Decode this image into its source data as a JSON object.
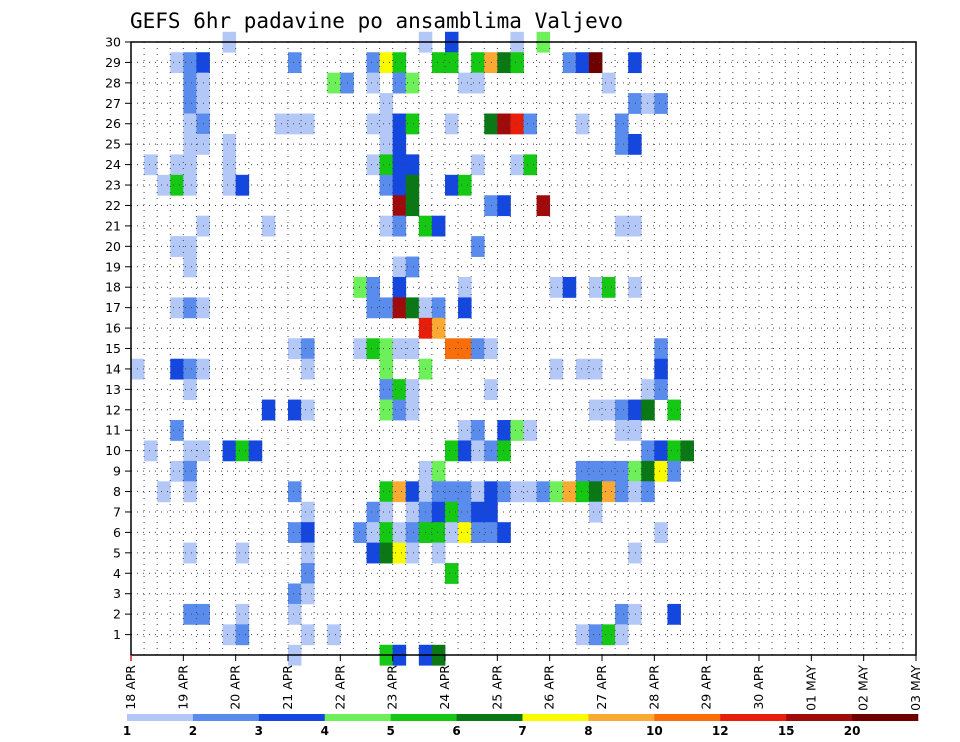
{
  "chart_data": {
    "type": "heatmap",
    "title": "GEFS 6hr padavine po ansamblima Valjevo",
    "xlabel": "",
    "ylabel": "",
    "x_tick_labels": [
      "18 APR",
      "19 APR",
      "20 APR",
      "21 APR",
      "22 APR",
      "23 APR",
      "24 APR",
      "25 APR",
      "26 APR",
      "27 APR",
      "28 APR",
      "29 APR",
      "30 APR",
      "01 MAY",
      "02 MAY",
      "03 MAY"
    ],
    "y_tick_labels": [
      "1",
      "2",
      "3",
      "4",
      "5",
      "6",
      "7",
      "8",
      "9",
      "10",
      "11",
      "12",
      "13",
      "14",
      "15",
      "16",
      "17",
      "18",
      "19",
      "20",
      "21",
      "22",
      "23",
      "24",
      "25",
      "26",
      "27",
      "28",
      "29",
      "30"
    ],
    "x_range_days": [
      0,
      15
    ],
    "y_range": [
      0,
      30
    ],
    "time_step": "6hr",
    "grid": true,
    "legend_placement": "bottom",
    "legend": {
      "labels": [
        "1",
        "2",
        "3",
        "4",
        "5",
        "6",
        "7",
        "8",
        "10",
        "12",
        "15",
        "20"
      ],
      "colors": [
        "#b4c8f8",
        "#5a8cee",
        "#1446e0",
        "#6ef05a",
        "#14c814",
        "#0a7814",
        "#fafa00",
        "#faaa32",
        "#fa6e0a",
        "#e61e0a",
        "#a00a0a",
        "#6e0000"
      ]
    },
    "values_note": "cells: [member, time_index (6h steps from 18 APR 00Z), level index 1-12]",
    "cells": [
      [
        30,
        7,
        1
      ],
      [
        30,
        22,
        1
      ],
      [
        30,
        24,
        3
      ],
      [
        30,
        29,
        1
      ],
      [
        30,
        31,
        4
      ],
      [
        29,
        3,
        1
      ],
      [
        29,
        4,
        2
      ],
      [
        29,
        5,
        3
      ],
      [
        29,
        12,
        2
      ],
      [
        29,
        18,
        2
      ],
      [
        29,
        19,
        7
      ],
      [
        29,
        20,
        5
      ],
      [
        29,
        23,
        5
      ],
      [
        29,
        24,
        5
      ],
      [
        29,
        26,
        5
      ],
      [
        29,
        27,
        8
      ],
      [
        29,
        28,
        6
      ],
      [
        29,
        29,
        5
      ],
      [
        29,
        33,
        2
      ],
      [
        29,
        34,
        3
      ],
      [
        29,
        35,
        12
      ],
      [
        29,
        38,
        3
      ],
      [
        28,
        4,
        2
      ],
      [
        28,
        5,
        1
      ],
      [
        28,
        15,
        4
      ],
      [
        28,
        16,
        2
      ],
      [
        28,
        18,
        1
      ],
      [
        28,
        20,
        2
      ],
      [
        28,
        21,
        4
      ],
      [
        28,
        25,
        1
      ],
      [
        28,
        26,
        1
      ],
      [
        28,
        36,
        1
      ],
      [
        27,
        4,
        2
      ],
      [
        27,
        5,
        1
      ],
      [
        27,
        19,
        1
      ],
      [
        27,
        38,
        2
      ],
      [
        27,
        39,
        1
      ],
      [
        27,
        40,
        2
      ],
      [
        26,
        4,
        1
      ],
      [
        26,
        5,
        2
      ],
      [
        26,
        11,
        1
      ],
      [
        26,
        12,
        1
      ],
      [
        26,
        13,
        1
      ],
      [
        26,
        18,
        1
      ],
      [
        26,
        19,
        1
      ],
      [
        26,
        20,
        3
      ],
      [
        26,
        21,
        5
      ],
      [
        26,
        24,
        1
      ],
      [
        26,
        27,
        6
      ],
      [
        26,
        28,
        11
      ],
      [
        26,
        29,
        10
      ],
      [
        26,
        30,
        2
      ],
      [
        26,
        34,
        1
      ],
      [
        26,
        37,
        2
      ],
      [
        25,
        4,
        1
      ],
      [
        25,
        5,
        1
      ],
      [
        25,
        7,
        1
      ],
      [
        25,
        19,
        1
      ],
      [
        25,
        20,
        3
      ],
      [
        25,
        37,
        2
      ],
      [
        25,
        38,
        3
      ],
      [
        24,
        1,
        1
      ],
      [
        24,
        3,
        1
      ],
      [
        24,
        4,
        1
      ],
      [
        24,
        7,
        1
      ],
      [
        24,
        18,
        1
      ],
      [
        24,
        19,
        5
      ],
      [
        24,
        20,
        3
      ],
      [
        24,
        21,
        3
      ],
      [
        24,
        26,
        1
      ],
      [
        24,
        29,
        1
      ],
      [
        24,
        30,
        5
      ],
      [
        23,
        2,
        1
      ],
      [
        23,
        3,
        5
      ],
      [
        23,
        4,
        1
      ],
      [
        23,
        7,
        1
      ],
      [
        23,
        8,
        3
      ],
      [
        23,
        19,
        2
      ],
      [
        23,
        20,
        3
      ],
      [
        23,
        21,
        6
      ],
      [
        23,
        24,
        3
      ],
      [
        23,
        25,
        5
      ],
      [
        22,
        20,
        11
      ],
      [
        22,
        21,
        6
      ],
      [
        22,
        27,
        2
      ],
      [
        22,
        28,
        3
      ],
      [
        22,
        31,
        11
      ],
      [
        21,
        5,
        1
      ],
      [
        21,
        10,
        1
      ],
      [
        21,
        19,
        1
      ],
      [
        21,
        20,
        2
      ],
      [
        21,
        22,
        5
      ],
      [
        21,
        23,
        3
      ],
      [
        21,
        37,
        1
      ],
      [
        21,
        38,
        1
      ],
      [
        20,
        3,
        1
      ],
      [
        20,
        4,
        1
      ],
      [
        20,
        26,
        2
      ],
      [
        19,
        4,
        1
      ],
      [
        19,
        20,
        1
      ],
      [
        19,
        21,
        2
      ],
      [
        18,
        17,
        4
      ],
      [
        18,
        18,
        2
      ],
      [
        18,
        20,
        3
      ],
      [
        18,
        25,
        1
      ],
      [
        18,
        32,
        1
      ],
      [
        18,
        33,
        3
      ],
      [
        18,
        35,
        1
      ],
      [
        18,
        36,
        5
      ],
      [
        18,
        38,
        1
      ],
      [
        17,
        3,
        1
      ],
      [
        17,
        4,
        2
      ],
      [
        17,
        5,
        1
      ],
      [
        17,
        18,
        2
      ],
      [
        17,
        19,
        2
      ],
      [
        17,
        20,
        11
      ],
      [
        17,
        21,
        6
      ],
      [
        17,
        22,
        1
      ],
      [
        17,
        23,
        2
      ],
      [
        17,
        25,
        3
      ],
      [
        16,
        22,
        10
      ],
      [
        16,
        23,
        8
      ],
      [
        15,
        12,
        1
      ],
      [
        15,
        13,
        2
      ],
      [
        15,
        17,
        1
      ],
      [
        15,
        18,
        5
      ],
      [
        15,
        19,
        4
      ],
      [
        15,
        20,
        1
      ],
      [
        15,
        21,
        1
      ],
      [
        15,
        24,
        9
      ],
      [
        15,
        25,
        9
      ],
      [
        15,
        26,
        2
      ],
      [
        15,
        27,
        1
      ],
      [
        15,
        40,
        2
      ],
      [
        14,
        0,
        1
      ],
      [
        14,
        3,
        3
      ],
      [
        14,
        4,
        2
      ],
      [
        14,
        5,
        1
      ],
      [
        14,
        13,
        1
      ],
      [
        14,
        19,
        4
      ],
      [
        14,
        22,
        4
      ],
      [
        14,
        32,
        1
      ],
      [
        14,
        34,
        1
      ],
      [
        14,
        35,
        1
      ],
      [
        14,
        40,
        3
      ],
      [
        13,
        4,
        1
      ],
      [
        13,
        19,
        2
      ],
      [
        13,
        20,
        5
      ],
      [
        13,
        21,
        1
      ],
      [
        13,
        27,
        1
      ],
      [
        13,
        39,
        1
      ],
      [
        13,
        40,
        2
      ],
      [
        12,
        10,
        3
      ],
      [
        12,
        12,
        3
      ],
      [
        12,
        13,
        1
      ],
      [
        12,
        19,
        4
      ],
      [
        12,
        20,
        2
      ],
      [
        12,
        21,
        1
      ],
      [
        12,
        35,
        1
      ],
      [
        12,
        36,
        1
      ],
      [
        12,
        37,
        2
      ],
      [
        12,
        38,
        3
      ],
      [
        12,
        39,
        6
      ],
      [
        12,
        41,
        5
      ],
      [
        11,
        3,
        2
      ],
      [
        11,
        25,
        1
      ],
      [
        11,
        26,
        2
      ],
      [
        11,
        28,
        3
      ],
      [
        11,
        29,
        4
      ],
      [
        11,
        30,
        1
      ],
      [
        11,
        37,
        1
      ],
      [
        11,
        38,
        1
      ],
      [
        10,
        1,
        1
      ],
      [
        10,
        4,
        1
      ],
      [
        10,
        5,
        1
      ],
      [
        10,
        7,
        3
      ],
      [
        10,
        8,
        5
      ],
      [
        10,
        9,
        3
      ],
      [
        10,
        24,
        5
      ],
      [
        10,
        25,
        3
      ],
      [
        10,
        26,
        1
      ],
      [
        10,
        27,
        2
      ],
      [
        10,
        28,
        5
      ],
      [
        10,
        39,
        2
      ],
      [
        10,
        40,
        3
      ],
      [
        10,
        41,
        5
      ],
      [
        10,
        42,
        6
      ],
      [
        9,
        3,
        1
      ],
      [
        9,
        4,
        2
      ],
      [
        9,
        22,
        1
      ],
      [
        9,
        23,
        4
      ],
      [
        9,
        34,
        2
      ],
      [
        9,
        35,
        2
      ],
      [
        9,
        36,
        2
      ],
      [
        9,
        37,
        2
      ],
      [
        9,
        38,
        4
      ],
      [
        9,
        39,
        6
      ],
      [
        9,
        40,
        7
      ],
      [
        9,
        41,
        2
      ],
      [
        8,
        2,
        1
      ],
      [
        8,
        4,
        1
      ],
      [
        8,
        12,
        2
      ],
      [
        8,
        19,
        5
      ],
      [
        8,
        20,
        8
      ],
      [
        8,
        21,
        3
      ],
      [
        8,
        22,
        1
      ],
      [
        8,
        23,
        2
      ],
      [
        8,
        24,
        2
      ],
      [
        8,
        25,
        2
      ],
      [
        8,
        26,
        1
      ],
      [
        8,
        27,
        3
      ],
      [
        8,
        28,
        2
      ],
      [
        8,
        29,
        1
      ],
      [
        8,
        30,
        1
      ],
      [
        8,
        31,
        2
      ],
      [
        8,
        32,
        4
      ],
      [
        8,
        33,
        8
      ],
      [
        8,
        34,
        5
      ],
      [
        8,
        35,
        6
      ],
      [
        8,
        36,
        8
      ],
      [
        8,
        37,
        2
      ],
      [
        8,
        38,
        1
      ],
      [
        8,
        39,
        2
      ],
      [
        7,
        13,
        1
      ],
      [
        7,
        18,
        2
      ],
      [
        7,
        19,
        1
      ],
      [
        7,
        21,
        1
      ],
      [
        7,
        22,
        2
      ],
      [
        7,
        23,
        3
      ],
      [
        7,
        24,
        5
      ],
      [
        7,
        25,
        2
      ],
      [
        7,
        26,
        3
      ],
      [
        7,
        27,
        3
      ],
      [
        7,
        35,
        1
      ],
      [
        6,
        12,
        2
      ],
      [
        6,
        13,
        3
      ],
      [
        6,
        17,
        2
      ],
      [
        6,
        18,
        1
      ],
      [
        6,
        19,
        5
      ],
      [
        6,
        20,
        1
      ],
      [
        6,
        21,
        2
      ],
      [
        6,
        22,
        5
      ],
      [
        6,
        23,
        5
      ],
      [
        6,
        24,
        1
      ],
      [
        6,
        25,
        7
      ],
      [
        6,
        26,
        2
      ],
      [
        6,
        27,
        2
      ],
      [
        6,
        28,
        3
      ],
      [
        6,
        40,
        1
      ],
      [
        5,
        4,
        1
      ],
      [
        5,
        8,
        1
      ],
      [
        5,
        13,
        1
      ],
      [
        5,
        18,
        3
      ],
      [
        5,
        19,
        6
      ],
      [
        5,
        20,
        7
      ],
      [
        5,
        21,
        1
      ],
      [
        5,
        23,
        1
      ],
      [
        5,
        38,
        1
      ],
      [
        4,
        13,
        2
      ],
      [
        4,
        24,
        5
      ],
      [
        3,
        12,
        2
      ],
      [
        3,
        13,
        1
      ],
      [
        2,
        4,
        2
      ],
      [
        2,
        5,
        2
      ],
      [
        2,
        8,
        1
      ],
      [
        2,
        12,
        1
      ],
      [
        2,
        37,
        2
      ],
      [
        2,
        38,
        1
      ],
      [
        2,
        41,
        3
      ],
      [
        1,
        7,
        1
      ],
      [
        1,
        8,
        2
      ],
      [
        1,
        13,
        1
      ],
      [
        1,
        15,
        1
      ],
      [
        1,
        34,
        1
      ],
      [
        1,
        35,
        2
      ],
      [
        1,
        36,
        5
      ],
      [
        1,
        37,
        1
      ],
      [
        0,
        12,
        1
      ],
      [
        0,
        19,
        5
      ],
      [
        0,
        20,
        3
      ],
      [
        0,
        22,
        3
      ],
      [
        0,
        23,
        6
      ]
    ]
  }
}
